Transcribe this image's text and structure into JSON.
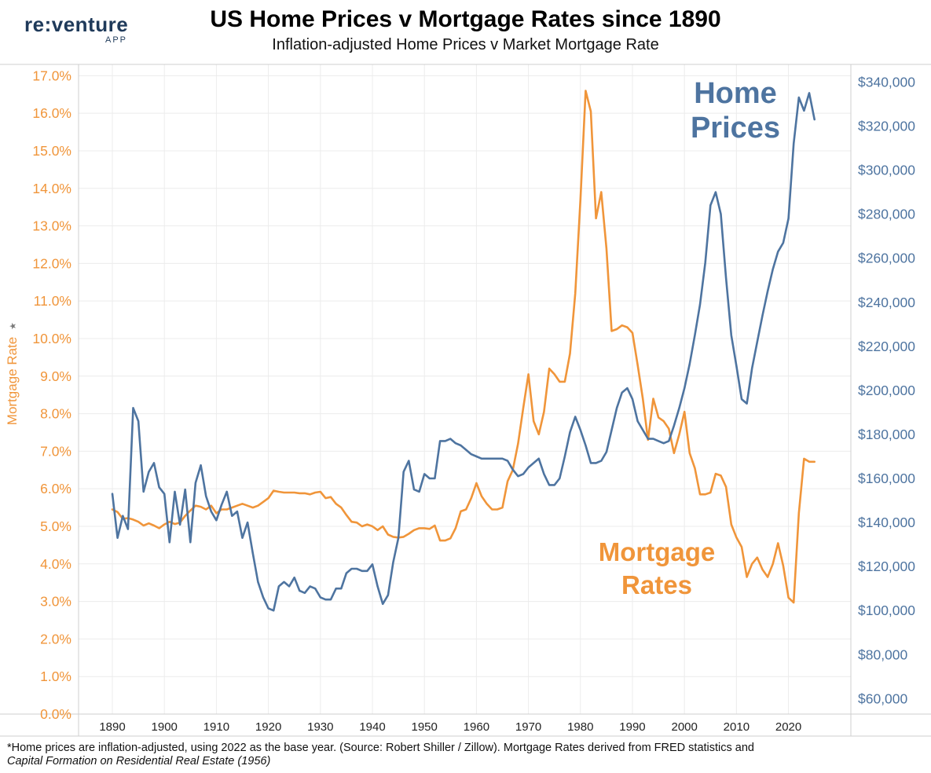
{
  "brand": {
    "logo_text": "re:venture",
    "logo_sub": "APP"
  },
  "header": {
    "title": "US Home Prices v Mortgage Rates since 1890",
    "subtitle": "Inflation-adjusted Home Prices v Market Mortgage Rate"
  },
  "footnote": {
    "line1": "*Home prices are inflation-adjusted, using 2022 as the base year. (Source: Robert Shiller / Zillow). Mortgage Rates derived from FRED statistics and",
    "line2": "Capital Formation on Residential Real Estate (1956)"
  },
  "chart_data": {
    "type": "line",
    "title": "US Home Prices v Mortgage Rates since 1890",
    "subtitle": "Inflation-adjusted Home Prices v Market Mortgage Rate",
    "xlabel": "",
    "ylabel": "Mortgage Rate",
    "y2label": "",
    "xlim": [
      1883.5,
      2032
    ],
    "ylim": [
      0,
      17.3
    ],
    "y2lim": [
      53000,
      348000
    ],
    "x_ticks": [
      "1890",
      "1900",
      "1910",
      "1920",
      "1930",
      "1940",
      "1950",
      "1960",
      "1970",
      "1980",
      "1990",
      "2000",
      "2010",
      "2020"
    ],
    "y_ticks": [
      "0.0%",
      "1.0%",
      "2.0%",
      "3.0%",
      "4.0%",
      "5.0%",
      "6.0%",
      "7.0%",
      "8.0%",
      "9.0%",
      "10.0%",
      "11.0%",
      "12.0%",
      "13.0%",
      "14.0%",
      "15.0%",
      "16.0%",
      "17.0%"
    ],
    "y2_ticks": [
      "$60,000",
      "$80,000",
      "$100,000",
      "$120,000",
      "$140,000",
      "$160,000",
      "$180,000",
      "$200,000",
      "$220,000",
      "$240,000",
      "$260,000",
      "$280,000",
      "$300,000",
      "$320,000",
      "$340,000"
    ],
    "grid": true,
    "colors": {
      "mortgage": "#f0953a",
      "home": "#4e74a0",
      "axis_text_left": "#f0953a",
      "axis_text_right": "#4e74a0"
    },
    "annotations": [
      {
        "text": "Home",
        "series": "Home Prices"
      },
      {
        "text": "Prices",
        "series": "Home Prices"
      },
      {
        "text": "Mortgage",
        "series": "Mortgage Rates"
      },
      {
        "text": "Rates",
        "series": "Mortgage Rates"
      }
    ],
    "series": [
      {
        "name": "Home Prices",
        "axis": "right",
        "points": [
          [
            1890,
            153000
          ],
          [
            1891,
            133000
          ],
          [
            1892,
            143000
          ],
          [
            1893,
            137000
          ],
          [
            1894,
            192000
          ],
          [
            1895,
            186000
          ],
          [
            1896,
            154000
          ],
          [
            1897,
            163000
          ],
          [
            1898,
            167000
          ],
          [
            1899,
            156000
          ],
          [
            1900,
            153000
          ],
          [
            1901,
            131000
          ],
          [
            1902,
            154000
          ],
          [
            1903,
            139000
          ],
          [
            1904,
            155000
          ],
          [
            1905,
            131000
          ],
          [
            1906,
            158000
          ],
          [
            1907,
            166000
          ],
          [
            1908,
            152000
          ],
          [
            1909,
            145000
          ],
          [
            1910,
            141000
          ],
          [
            1911,
            148000
          ],
          [
            1912,
            154000
          ],
          [
            1913,
            143000
          ],
          [
            1914,
            145000
          ],
          [
            1915,
            133000
          ],
          [
            1916,
            140000
          ],
          [
            1917,
            126000
          ],
          [
            1918,
            113000
          ],
          [
            1919,
            106000
          ],
          [
            1920,
            101000
          ],
          [
            1921,
            100000
          ],
          [
            1922,
            111000
          ],
          [
            1923,
            113000
          ],
          [
            1924,
            111000
          ],
          [
            1925,
            115000
          ],
          [
            1926,
            109000
          ],
          [
            1927,
            108000
          ],
          [
            1928,
            111000
          ],
          [
            1929,
            110000
          ],
          [
            1930,
            106000
          ],
          [
            1931,
            105000
          ],
          [
            1932,
            105000
          ],
          [
            1933,
            110000
          ],
          [
            1934,
            110000
          ],
          [
            1935,
            117000
          ],
          [
            1936,
            119000
          ],
          [
            1937,
            119000
          ],
          [
            1938,
            118000
          ],
          [
            1939,
            118000
          ],
          [
            1940,
            121000
          ],
          [
            1941,
            111000
          ],
          [
            1942,
            103000
          ],
          [
            1943,
            107000
          ],
          [
            1944,
            122000
          ],
          [
            1945,
            133000
          ],
          [
            1946,
            163000
          ],
          [
            1947,
            168000
          ],
          [
            1948,
            155000
          ],
          [
            1949,
            154000
          ],
          [
            1950,
            162000
          ],
          [
            1951,
            160000
          ],
          [
            1952,
            160000
          ],
          [
            1953,
            177000
          ],
          [
            1954,
            177000
          ],
          [
            1955,
            178000
          ],
          [
            1956,
            176000
          ],
          [
            1957,
            175000
          ],
          [
            1958,
            173000
          ],
          [
            1959,
            171000
          ],
          [
            1960,
            170000
          ],
          [
            1961,
            169000
          ],
          [
            1962,
            169000
          ],
          [
            1963,
            169000
          ],
          [
            1964,
            169000
          ],
          [
            1965,
            169000
          ],
          [
            1966,
            168000
          ],
          [
            1967,
            164000
          ],
          [
            1968,
            161000
          ],
          [
            1969,
            162000
          ],
          [
            1970,
            165000
          ],
          [
            1971,
            167000
          ],
          [
            1972,
            169000
          ],
          [
            1973,
            162000
          ],
          [
            1974,
            157000
          ],
          [
            1975,
            157000
          ],
          [
            1976,
            160000
          ],
          [
            1977,
            170000
          ],
          [
            1978,
            181000
          ],
          [
            1979,
            188000
          ],
          [
            1980,
            182000
          ],
          [
            1981,
            175000
          ],
          [
            1982,
            167000
          ],
          [
            1983,
            167000
          ],
          [
            1984,
            168000
          ],
          [
            1985,
            172000
          ],
          [
            1986,
            182000
          ],
          [
            1987,
            192000
          ],
          [
            1988,
            199000
          ],
          [
            1989,
            201000
          ],
          [
            1990,
            196000
          ],
          [
            1991,
            186000
          ],
          [
            1992,
            182000
          ],
          [
            1993,
            178000
          ],
          [
            1994,
            178000
          ],
          [
            1995,
            177000
          ],
          [
            1996,
            176000
          ],
          [
            1997,
            177000
          ],
          [
            1998,
            184000
          ],
          [
            1999,
            192000
          ],
          [
            2000,
            201000
          ],
          [
            2001,
            212000
          ],
          [
            2002,
            225000
          ],
          [
            2003,
            239000
          ],
          [
            2004,
            258000
          ],
          [
            2005,
            284000
          ],
          [
            2006,
            290000
          ],
          [
            2007,
            280000
          ],
          [
            2008,
            251000
          ],
          [
            2009,
            225000
          ],
          [
            2010,
            211000
          ],
          [
            2011,
            196000
          ],
          [
            2012,
            194000
          ],
          [
            2013,
            210000
          ],
          [
            2014,
            222000
          ],
          [
            2015,
            234000
          ],
          [
            2016,
            245000
          ],
          [
            2017,
            255000
          ],
          [
            2018,
            263000
          ],
          [
            2019,
            267000
          ],
          [
            2020,
            278000
          ],
          [
            2021,
            312000
          ],
          [
            2022,
            333000
          ],
          [
            2023,
            327000
          ],
          [
            2024,
            335000
          ],
          [
            2025,
            323000
          ]
        ]
      },
      {
        "name": "Mortgage Rates",
        "axis": "left",
        "points": [
          [
            1890,
            5.45
          ],
          [
            1891,
            5.38
          ],
          [
            1892,
            5.2
          ],
          [
            1893,
            5.22
          ],
          [
            1894,
            5.18
          ],
          [
            1895,
            5.12
          ],
          [
            1896,
            5.02
          ],
          [
            1897,
            5.08
          ],
          [
            1898,
            5.02
          ],
          [
            1899,
            4.95
          ],
          [
            1900,
            5.05
          ],
          [
            1901,
            5.12
          ],
          [
            1902,
            5.06
          ],
          [
            1903,
            5.1
          ],
          [
            1904,
            5.28
          ],
          [
            1905,
            5.42
          ],
          [
            1906,
            5.55
          ],
          [
            1907,
            5.52
          ],
          [
            1908,
            5.45
          ],
          [
            1909,
            5.55
          ],
          [
            1910,
            5.35
          ],
          [
            1911,
            5.45
          ],
          [
            1912,
            5.45
          ],
          [
            1913,
            5.5
          ],
          [
            1914,
            5.55
          ],
          [
            1915,
            5.6
          ],
          [
            1916,
            5.55
          ],
          [
            1917,
            5.5
          ],
          [
            1918,
            5.55
          ],
          [
            1919,
            5.65
          ],
          [
            1920,
            5.75
          ],
          [
            1921,
            5.95
          ],
          [
            1922,
            5.92
          ],
          [
            1923,
            5.9
          ],
          [
            1924,
            5.9
          ],
          [
            1925,
            5.9
          ],
          [
            1926,
            5.88
          ],
          [
            1927,
            5.88
          ],
          [
            1928,
            5.85
          ],
          [
            1929,
            5.9
          ],
          [
            1930,
            5.92
          ],
          [
            1931,
            5.75
          ],
          [
            1932,
            5.78
          ],
          [
            1933,
            5.6
          ],
          [
            1934,
            5.5
          ],
          [
            1935,
            5.3
          ],
          [
            1936,
            5.12
          ],
          [
            1937,
            5.1
          ],
          [
            1938,
            5.0
          ],
          [
            1939,
            5.05
          ],
          [
            1940,
            5.0
          ],
          [
            1941,
            4.9
          ],
          [
            1942,
            5.0
          ],
          [
            1943,
            4.78
          ],
          [
            1944,
            4.72
          ],
          [
            1945,
            4.7
          ],
          [
            1946,
            4.72
          ],
          [
            1947,
            4.8
          ],
          [
            1948,
            4.9
          ],
          [
            1949,
            4.95
          ],
          [
            1950,
            4.95
          ],
          [
            1951,
            4.93
          ],
          [
            1952,
            5.02
          ],
          [
            1953,
            4.62
          ],
          [
            1954,
            4.62
          ],
          [
            1955,
            4.68
          ],
          [
            1956,
            4.95
          ],
          [
            1957,
            5.4
          ],
          [
            1958,
            5.45
          ],
          [
            1959,
            5.75
          ],
          [
            1960,
            6.15
          ],
          [
            1961,
            5.8
          ],
          [
            1962,
            5.6
          ],
          [
            1963,
            5.45
          ],
          [
            1964,
            5.45
          ],
          [
            1965,
            5.5
          ],
          [
            1966,
            6.2
          ],
          [
            1967,
            6.5
          ],
          [
            1968,
            7.2
          ],
          [
            1969,
            8.15
          ],
          [
            1970,
            9.05
          ],
          [
            1971,
            7.8
          ],
          [
            1972,
            7.45
          ],
          [
            1973,
            8.05
          ],
          [
            1974,
            9.2
          ],
          [
            1975,
            9.05
          ],
          [
            1976,
            8.85
          ],
          [
            1977,
            8.85
          ],
          [
            1978,
            9.6
          ],
          [
            1979,
            11.2
          ],
          [
            1980,
            13.7
          ],
          [
            1981,
            16.6
          ],
          [
            1982,
            16.05
          ],
          [
            1983,
            13.2
          ],
          [
            1984,
            13.9
          ],
          [
            1985,
            12.4
          ],
          [
            1986,
            10.2
          ],
          [
            1987,
            10.25
          ],
          [
            1988,
            10.35
          ],
          [
            1989,
            10.3
          ],
          [
            1990,
            10.15
          ],
          [
            1991,
            9.3
          ],
          [
            1992,
            8.4
          ],
          [
            1993,
            7.3
          ],
          [
            1994,
            8.4
          ],
          [
            1995,
            7.9
          ],
          [
            1996,
            7.8
          ],
          [
            1997,
            7.6
          ],
          [
            1998,
            6.95
          ],
          [
            1999,
            7.45
          ],
          [
            2000,
            8.05
          ],
          [
            2001,
            6.95
          ],
          [
            2002,
            6.55
          ],
          [
            2003,
            5.85
          ],
          [
            2004,
            5.85
          ],
          [
            2005,
            5.9
          ],
          [
            2006,
            6.4
          ],
          [
            2007,
            6.35
          ],
          [
            2008,
            6.05
          ],
          [
            2009,
            5.05
          ],
          [
            2010,
            4.7
          ],
          [
            2011,
            4.45
          ],
          [
            2012,
            3.65
          ],
          [
            2013,
            4.0
          ],
          [
            2014,
            4.17
          ],
          [
            2015,
            3.85
          ],
          [
            2016,
            3.65
          ],
          [
            2017,
            4.0
          ],
          [
            2018,
            4.55
          ],
          [
            2019,
            3.95
          ],
          [
            2020,
            3.1
          ],
          [
            2021,
            2.97
          ],
          [
            2022,
            5.35
          ],
          [
            2023,
            6.8
          ],
          [
            2024,
            6.72
          ],
          [
            2025,
            6.72
          ]
        ]
      }
    ]
  }
}
